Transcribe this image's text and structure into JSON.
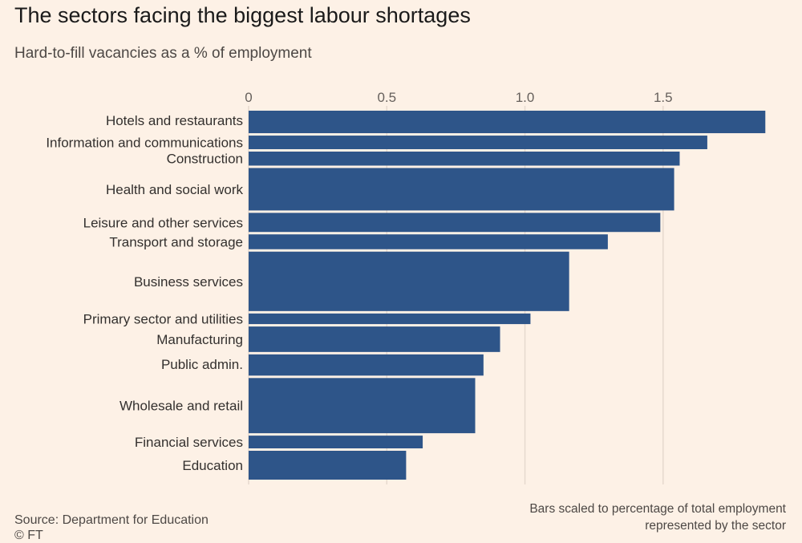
{
  "header": {
    "title": "The sectors facing the biggest labour shortages",
    "subtitle": "Hard-to-fill vacancies as a % of employment"
  },
  "footer": {
    "source": "Source: Department for Education",
    "copyright": "© FT",
    "note_line1": "Bars scaled to percentage of total employment",
    "note_line2": "represented by the sector"
  },
  "colors": {
    "bar": "#2e5589",
    "grid": "#e6d9ce",
    "background": "#fdf1e6"
  },
  "chart_data": {
    "type": "bar",
    "orientation": "horizontal",
    "title": "The sectors facing the biggest labour shortages",
    "subtitle": "Hard-to-fill vacancies as a % of employment",
    "xlim": [
      0,
      1.875
    ],
    "x_ticks": [
      0,
      0.5,
      1.0,
      1.5
    ],
    "x_tick_labels": [
      "0",
      "0.5",
      "1.0",
      "1.5"
    ],
    "axis_position": "top",
    "grid": true,
    "bar_height_encoding": "share of total employment represented by the sector (%)",
    "categories": [
      "Hotels and restaurants",
      "Information and communications",
      "Construction",
      "Health and social work",
      "Leisure and other services",
      "Transport and storage",
      "Business services",
      "Primary sector and utilities",
      "Manufacturing",
      "Public admin.",
      "Wholesale and retail",
      "Financial services",
      "Education"
    ],
    "values": [
      1.87,
      1.66,
      1.56,
      1.54,
      1.49,
      1.3,
      1.16,
      1.02,
      0.91,
      0.85,
      0.82,
      0.63,
      0.57
    ],
    "employment_share": [
      5.3,
      3.2,
      3.3,
      10.0,
      4.5,
      3.5,
      14.0,
      2.5,
      6.0,
      5.0,
      13.0,
      3.0,
      6.8
    ]
  }
}
